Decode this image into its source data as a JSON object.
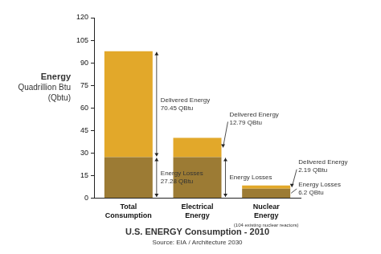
{
  "chart_data": {
    "type": "bar",
    "stacked": true,
    "title": "U.S. ENERGY Consumption - 2010",
    "subtitle": "Source: EIA / Architecture 2030",
    "y_label": [
      "Energy",
      "Quadrillion Btu",
      "(Qbtu)"
    ],
    "categories": [
      "Total Consumption",
      "Electrical Energy",
      "Nuclear Energy"
    ],
    "annotations": [
      {
        "category": "Nuclear Energy",
        "text": "(104 existing nuclear reactors)"
      }
    ],
    "series": [
      {
        "name": "Energy Losses",
        "color": "#9c7b34",
        "values": [
          27.28,
          27.28,
          6.2
        ],
        "value_labels": [
          "27.28 QBtu",
          null,
          "6.2 QBtu"
        ]
      },
      {
        "name": "Delivered Energy",
        "color": "#e2a82a",
        "values": [
          70.45,
          12.79,
          2.19
        ],
        "value_labels": [
          "70.45 QBtu",
          "12.79 QBtu",
          "2.19 QBtu"
        ]
      }
    ],
    "ylim": [
      0,
      120
    ],
    "yticks": [
      0,
      15,
      30,
      45,
      60,
      75,
      90,
      105,
      120
    ],
    "grid": false,
    "data_labels": true
  }
}
